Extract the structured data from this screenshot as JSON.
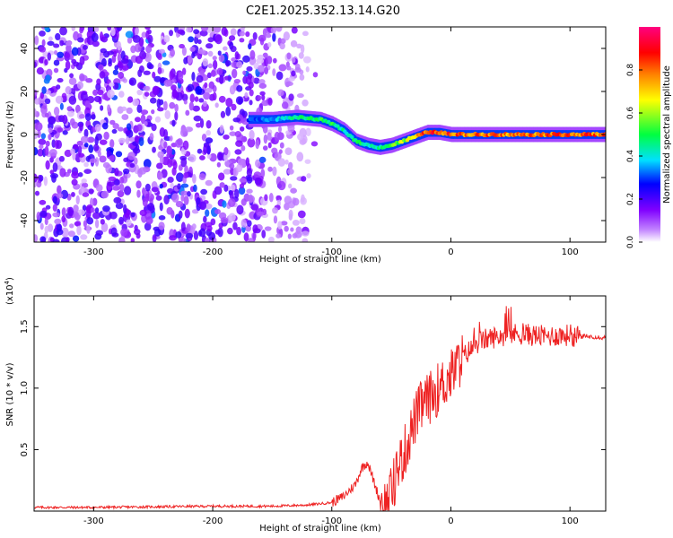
{
  "figure_title": "C2E1.2025.352.13.14.G20",
  "chart_data": [
    {
      "type": "heatmap",
      "title": "C2E1.2025.352.13.14.G20",
      "xlabel": "Height of straight line (km)",
      "ylabel": "Frequency (Hz)",
      "xlim": [
        -350,
        130
      ],
      "ylim": [
        -50,
        50
      ],
      "xticks": [
        -300,
        -200,
        -100,
        0,
        100
      ],
      "yticks": [
        -40,
        -20,
        0,
        20,
        40
      ],
      "xtick_labels": [
        "-300",
        "-200",
        "-100",
        "0",
        "100"
      ],
      "ytick_labels": [
        "-40",
        "-20",
        "0",
        "20",
        "40"
      ],
      "colorbar": {
        "label": "Normalized spectral amplitude",
        "range": [
          0,
          1
        ],
        "ticks": [
          0.0,
          0.2,
          0.4,
          0.6,
          0.8
        ],
        "tick_labels": [
          "0.0",
          "0.2",
          "0.4",
          "0.6",
          "0.8"
        ],
        "colors": [
          "#ffffff",
          "#c080ff",
          "#8000ff",
          "#0000ff",
          "#00e0ff",
          "#00ff40",
          "#ffff00",
          "#ff8000",
          "#ff0000",
          "#ff0080"
        ]
      },
      "signal_track": {
        "x": [
          -170,
          -150,
          -130,
          -110,
          -100,
          -90,
          -80,
          -70,
          -60,
          -50,
          -40,
          -30,
          -20,
          -10,
          0,
          20,
          60,
          100,
          130
        ],
        "freq": [
          7,
          7,
          8,
          7,
          5,
          2,
          -3,
          -5,
          -6,
          -5,
          -3,
          -1,
          1,
          1,
          0,
          0,
          0,
          0,
          0
        ],
        "amplitude": [
          0.3,
          0.35,
          0.45,
          0.5,
          0.5,
          0.45,
          0.5,
          0.45,
          0.45,
          0.55,
          0.6,
          0.7,
          0.9,
          0.85,
          0.85,
          0.8,
          0.8,
          0.85,
          0.8
        ]
      },
      "noise_region_x": [
        -350,
        -110
      ],
      "noise_level": 0.15
    },
    {
      "type": "line",
      "xlabel": "Height of straight line (km)",
      "ylabel": "SNR (10 * v/v)",
      "scale_label": "(x10",
      "scale_exponent": "4",
      "scale_close": ")",
      "xlim": [
        -350,
        130
      ],
      "ylim": [
        0,
        1.75
      ],
      "xticks": [
        -300,
        -200,
        -100,
        0,
        100
      ],
      "yticks": [
        0.5,
        1.0,
        1.5
      ],
      "xtick_labels": [
        "-300",
        "-200",
        "-100",
        "0",
        "100"
      ],
      "ytick_labels": [
        "0.5",
        "1.0",
        "1.5"
      ],
      "series": [
        {
          "name": "SNR",
          "color": "#ee2222",
          "x": [
            -350,
            -300,
            -250,
            -200,
            -150,
            -120,
            -100,
            -90,
            -80,
            -75,
            -70,
            -65,
            -60,
            -55,
            -50,
            -45,
            -40,
            -35,
            -30,
            -25,
            -20,
            -15,
            -10,
            -5,
            0,
            5,
            10,
            15,
            20,
            25,
            30,
            40,
            50,
            60,
            70,
            80,
            90,
            100,
            110,
            120,
            130
          ],
          "y": [
            0.03,
            0.03,
            0.035,
            0.04,
            0.04,
            0.05,
            0.07,
            0.12,
            0.22,
            0.35,
            0.4,
            0.25,
            0.1,
            0.05,
            0.15,
            0.35,
            0.45,
            0.6,
            0.75,
            0.85,
            0.9,
            0.95,
            1.0,
            1.05,
            1.1,
            1.18,
            1.25,
            1.3,
            1.35,
            1.38,
            1.4,
            1.42,
            1.44,
            1.44,
            1.43,
            1.42,
            1.43,
            1.43,
            1.42,
            1.42,
            1.41
          ]
        }
      ]
    }
  ]
}
